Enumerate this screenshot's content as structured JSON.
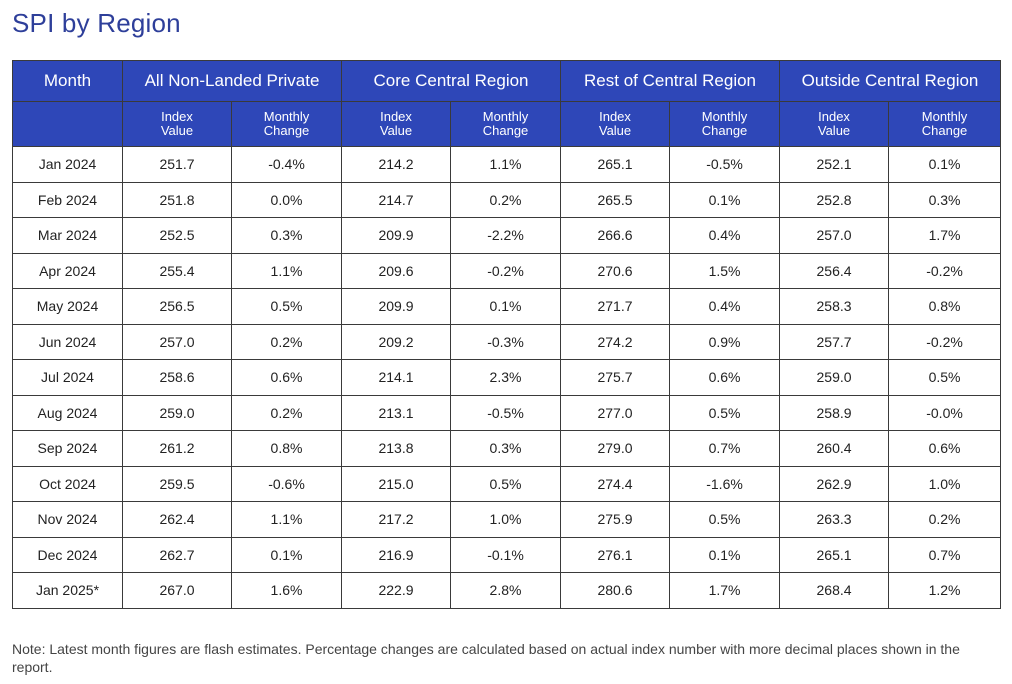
{
  "title": "SPI by Region",
  "table": {
    "month_header": "Month",
    "groups": [
      {
        "name": "All Non-Landed Private"
      },
      {
        "name": "Core Central Region"
      },
      {
        "name": "Rest of Central Region"
      },
      {
        "name": "Outside Central Region"
      }
    ],
    "sub_headers": {
      "index_line1": "Index",
      "index_line2": "Value",
      "change_line1": "Monthly",
      "change_line2": "Change"
    },
    "rows": [
      {
        "month": "Jan 2024",
        "values": [
          "251.7",
          "-0.4%",
          "214.2",
          "1.1%",
          "265.1",
          "-0.5%",
          "252.1",
          "0.1%"
        ]
      },
      {
        "month": "Feb 2024",
        "values": [
          "251.8",
          "0.0%",
          "214.7",
          "0.2%",
          "265.5",
          "0.1%",
          "252.8",
          "0.3%"
        ]
      },
      {
        "month": "Mar 2024",
        "values": [
          "252.5",
          "0.3%",
          "209.9",
          "-2.2%",
          "266.6",
          "0.4%",
          "257.0",
          "1.7%"
        ]
      },
      {
        "month": "Apr 2024",
        "values": [
          "255.4",
          "1.1%",
          "209.6",
          "-0.2%",
          "270.6",
          "1.5%",
          "256.4",
          "-0.2%"
        ]
      },
      {
        "month": "May 2024",
        "values": [
          "256.5",
          "0.5%",
          "209.9",
          "0.1%",
          "271.7",
          "0.4%",
          "258.3",
          "0.8%"
        ]
      },
      {
        "month": "Jun 2024",
        "values": [
          "257.0",
          "0.2%",
          "209.2",
          "-0.3%",
          "274.2",
          "0.9%",
          "257.7",
          "-0.2%"
        ]
      },
      {
        "month": "Jul 2024",
        "values": [
          "258.6",
          "0.6%",
          "214.1",
          "2.3%",
          "275.7",
          "0.6%",
          "259.0",
          "0.5%"
        ]
      },
      {
        "month": "Aug 2024",
        "values": [
          "259.0",
          "0.2%",
          "213.1",
          "-0.5%",
          "277.0",
          "0.5%",
          "258.9",
          "-0.0%"
        ]
      },
      {
        "month": "Sep 2024",
        "values": [
          "261.2",
          "0.8%",
          "213.8",
          "0.3%",
          "279.0",
          "0.7%",
          "260.4",
          "0.6%"
        ]
      },
      {
        "month": "Oct 2024",
        "values": [
          "259.5",
          "-0.6%",
          "215.0",
          "0.5%",
          "274.4",
          "-1.6%",
          "262.9",
          "1.0%"
        ]
      },
      {
        "month": "Nov 2024",
        "values": [
          "262.4",
          "1.1%",
          "217.2",
          "1.0%",
          "275.9",
          "0.5%",
          "263.3",
          "0.2%"
        ]
      },
      {
        "month": "Dec 2024",
        "values": [
          "262.7",
          "0.1%",
          "216.9",
          "-0.1%",
          "276.1",
          "0.1%",
          "265.1",
          "0.7%"
        ]
      },
      {
        "month": "Jan 2025*",
        "values": [
          "267.0",
          "1.6%",
          "222.9",
          "2.8%",
          "280.6",
          "1.7%",
          "268.4",
          "1.2%"
        ]
      }
    ]
  },
  "note": "Note: Latest month figures are flash estimates. Percentage changes are calculated based on actual index number with more decimal places shown in the report.",
  "colors": {
    "title": "#2e3f9a",
    "header_bg": "#2e47b8",
    "header_text": "#ffffff"
  }
}
